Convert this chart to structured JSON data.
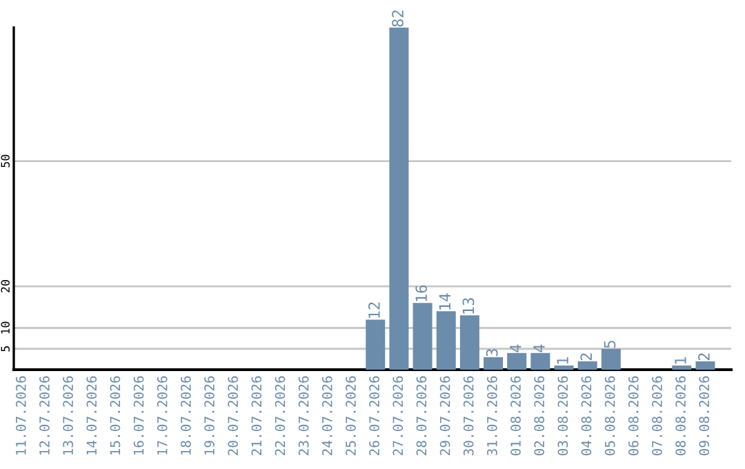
{
  "chart_data": {
    "type": "bar",
    "categories": [
      "11.07.2026",
      "12.07.2026",
      "13.07.2026",
      "14.07.2026",
      "15.07.2026",
      "16.07.2026",
      "17.07.2026",
      "18.07.2026",
      "19.07.2026",
      "20.07.2026",
      "21.07.2026",
      "22.07.2026",
      "23.07.2026",
      "24.07.2026",
      "25.07.2026",
      "26.07.2026",
      "27.07.2026",
      "28.07.2026",
      "29.07.2026",
      "30.07.2026",
      "31.07.2026",
      "01.08.2026",
      "02.08.2026",
      "03.08.2026",
      "04.08.2026",
      "05.08.2026",
      "06.08.2026",
      "07.08.2026",
      "08.08.2026",
      "09.08.2026"
    ],
    "values": [
      0,
      0,
      0,
      0,
      0,
      0,
      0,
      0,
      0,
      0,
      0,
      0,
      0,
      0,
      0,
      12,
      82,
      16,
      14,
      13,
      3,
      4,
      4,
      1,
      2,
      5,
      0,
      0,
      1,
      2
    ],
    "value_labels": [
      null,
      null,
      null,
      null,
      null,
      null,
      null,
      null,
      null,
      null,
      null,
      null,
      null,
      null,
      null,
      "12",
      "82",
      "16",
      "14",
      "13",
      "3",
      "4",
      "4",
      "1",
      "2",
      "5",
      null,
      null,
      "1",
      "2"
    ],
    "color": "#6b8cab",
    "ylim": [
      0,
      82
    ],
    "yticks": [
      5,
      10,
      20,
      50
    ],
    "grid": "y"
  }
}
